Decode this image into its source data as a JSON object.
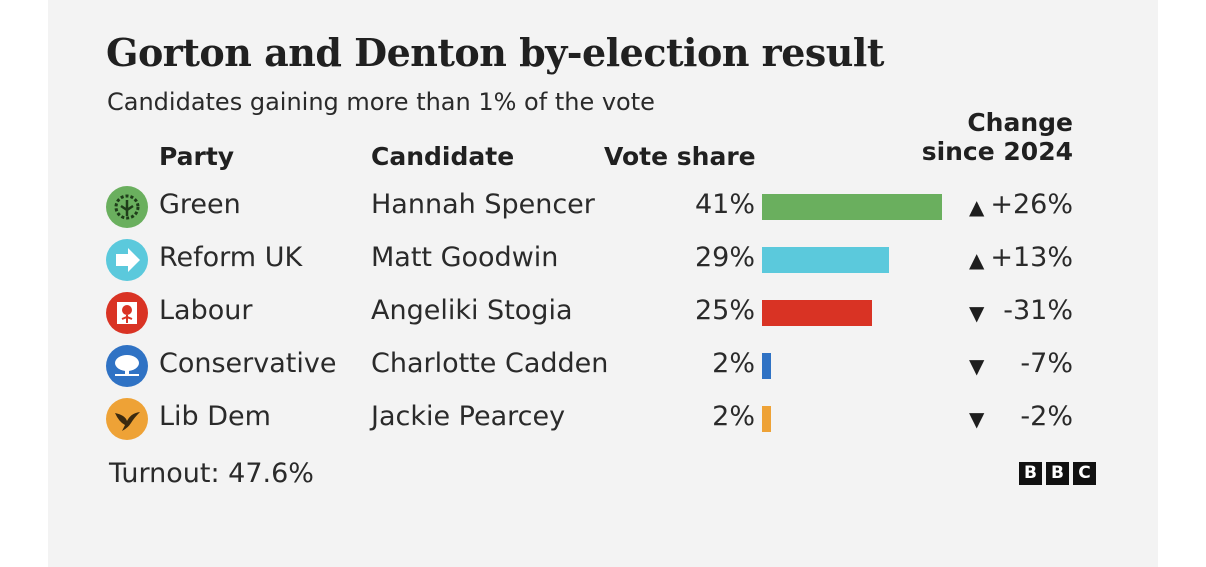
{
  "chart_data": {
    "type": "bar",
    "title": "Gorton and Denton by-election result",
    "subtitle": "Candidates gaining more than 1% of the vote",
    "headers": {
      "party": "Party",
      "candidate": "Candidate",
      "vote_share": "Vote share",
      "change_line1": "Change",
      "change_line2": "since 2024"
    },
    "rows": [
      {
        "party": "Green",
        "candidate": "Hannah Spencer",
        "vote_share": 41,
        "vote_label": "41%",
        "change": "+26%",
        "direction": "up",
        "color": "#6aaf5e",
        "icon": "green-party-logo-icon"
      },
      {
        "party": "Reform UK",
        "candidate": "Matt Goodwin",
        "vote_share": 29,
        "vote_label": "29%",
        "change": "+13%",
        "direction": "up",
        "color": "#5bc9dc",
        "icon": "reform-arrow-icon"
      },
      {
        "party": "Labour",
        "candidate": "Angeliki Stogia",
        "vote_share": 25,
        "vote_label": "25%",
        "change": "-31%",
        "direction": "down",
        "color": "#d93324",
        "icon": "labour-rose-icon"
      },
      {
        "party": "Conservative",
        "candidate": "Charlotte Cadden",
        "vote_share": 2,
        "vote_label": "2%",
        "change": "-7%",
        "direction": "down",
        "color": "#2f72c4",
        "icon": "conservative-tree-icon"
      },
      {
        "party": "Lib Dem",
        "candidate": "Jackie Pearcey",
        "vote_share": 2,
        "vote_label": "2%",
        "change": "-2%",
        "direction": "down",
        "color": "#eea236",
        "icon": "libdem-bird-icon"
      }
    ]
  },
  "footer": {
    "turnout": "Turnout: 47.6%",
    "logo": [
      "B",
      "B",
      "C"
    ]
  }
}
